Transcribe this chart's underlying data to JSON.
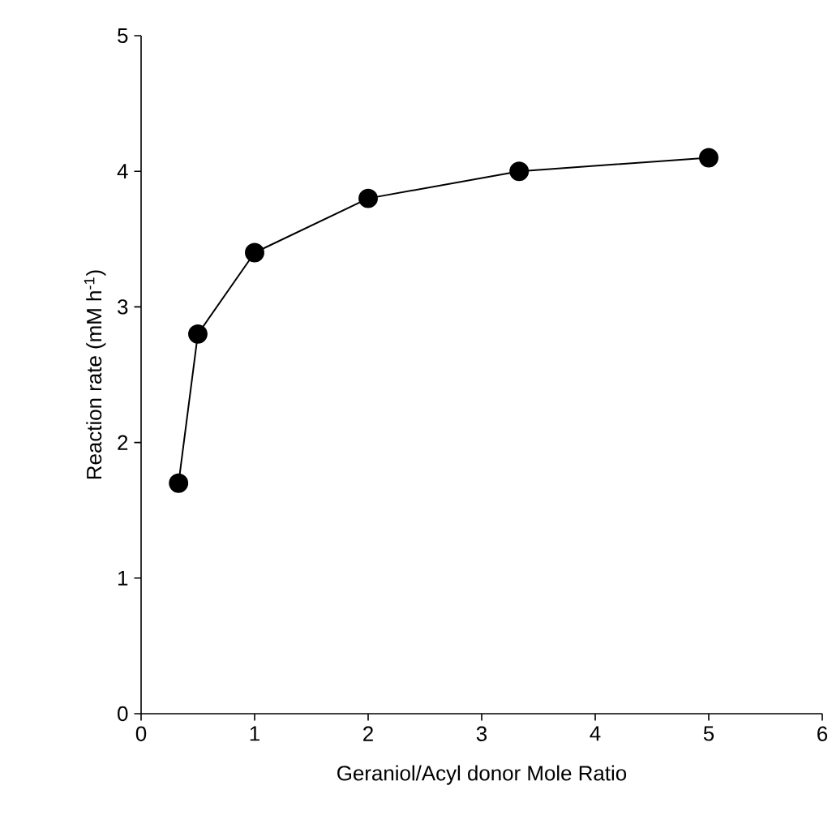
{
  "chart_data": {
    "type": "line",
    "xlabel": "Geraniol/Acyl donor Mole Ratio",
    "ylabel": "Reaction rate (mM h$^{-1}$)",
    "x": [
      0.33,
      0.5,
      1,
      2,
      3.33,
      5
    ],
    "series": [
      {
        "color": "#000000",
        "values": [
          1.7,
          2.8,
          3.4,
          3.8,
          4.0,
          4.1
        ]
      }
    ],
    "xlim": [
      0,
      6
    ],
    "ylim": [
      0,
      5
    ],
    "xticks": [
      0,
      1,
      2,
      3,
      4,
      5,
      6
    ],
    "yticks": [
      0,
      1,
      2,
      3,
      4,
      5
    ],
    "marker": "circle",
    "line_style": "solid"
  }
}
